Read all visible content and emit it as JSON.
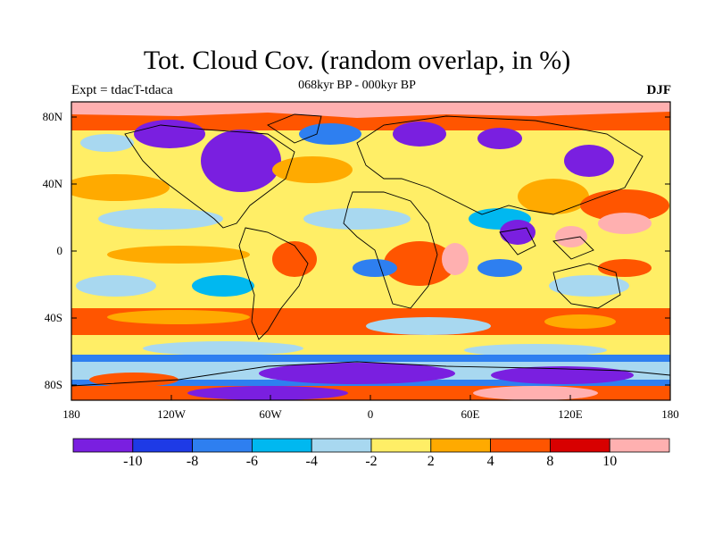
{
  "title": "Tot. Cloud Cov. (random overlap, in %)",
  "subtitle": "068kyr BP - 000kyr BP",
  "left_label": "Expt = tdacT-tdaca",
  "right_label": "DJF",
  "lat_ticks": [
    "80N",
    "40N",
    "0",
    "40S",
    "80S"
  ],
  "lon_ticks": [
    "180",
    "120W",
    "60W",
    "0",
    "60E",
    "120E",
    "180"
  ],
  "colorbar": {
    "colors": [
      "#7a1fe0",
      "#1e3ae6",
      "#2e7ff0",
      "#00b8f0",
      "#a8d8f0",
      "#ffee66",
      "#ffaa00",
      "#ff5500",
      "#d80000",
      "#ffb0b0"
    ],
    "labels": [
      "-10",
      "-8",
      "-6",
      "-4",
      "-2",
      "2",
      "4",
      "8",
      "10"
    ]
  }
}
